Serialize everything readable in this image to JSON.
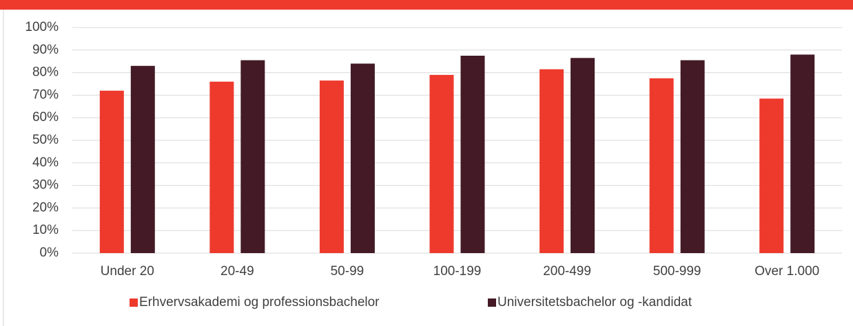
{
  "chart_data": {
    "type": "bar",
    "categories": [
      "Under 20",
      "20-49",
      "50-99",
      "100-199",
      "200-499",
      "500-999",
      "Over 1.000"
    ],
    "series": [
      {
        "name": "Erhvervsakademi og professionsbachelor",
        "color": "#ee3a2d",
        "values": [
          72,
          76,
          76.5,
          79,
          81.5,
          77.5,
          68.5
        ]
      },
      {
        "name": "Universitetsbachelor og -kandidat",
        "color": "#431a26",
        "values": [
          83,
          85.5,
          84,
          87.5,
          86.5,
          85.5,
          88
        ]
      }
    ],
    "ylim": [
      0,
      100
    ],
    "yticks": [
      {
        "value": 0,
        "label": "0%"
      },
      {
        "value": 10,
        "label": "10%"
      },
      {
        "value": 20,
        "label": "20%"
      },
      {
        "value": 30,
        "label": "30%"
      },
      {
        "value": 40,
        "label": "40%"
      },
      {
        "value": 50,
        "label": "50%"
      },
      {
        "value": 60,
        "label": "60%"
      },
      {
        "value": 70,
        "label": "70%"
      },
      {
        "value": 80,
        "label": "80%"
      },
      {
        "value": 90,
        "label": "90%"
      },
      {
        "value": 100,
        "label": "100%"
      }
    ],
    "grid": true,
    "legend": "bottom"
  }
}
